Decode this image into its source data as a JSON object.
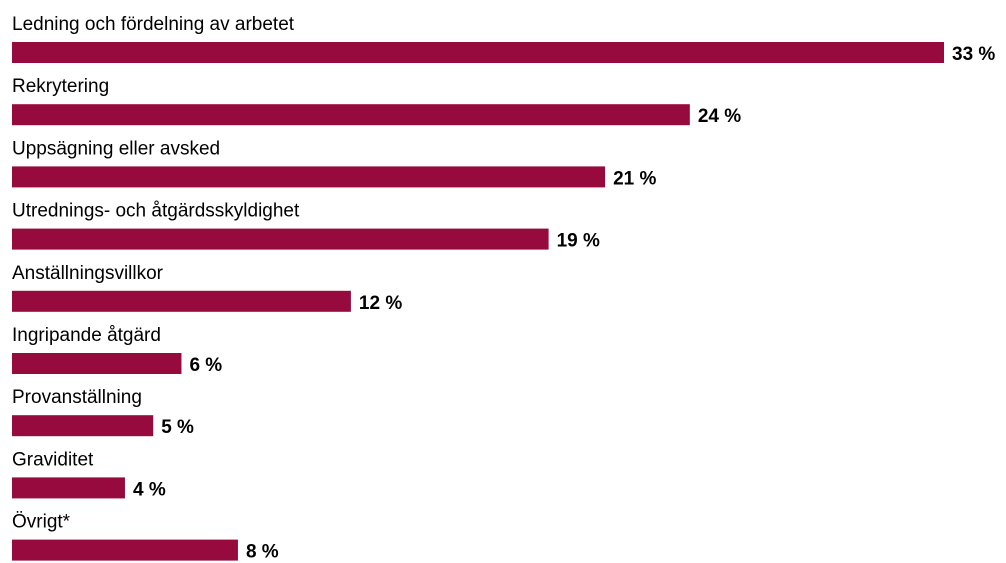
{
  "chart_data": {
    "type": "bar",
    "orientation": "horizontal",
    "categories": [
      "Ledning och fördelning av arbetet",
      "Rekrytering",
      "Uppsägning eller avsked",
      "Utrednings- och åtgärdsskyldighet",
      "Anställningsvillkor",
      "Ingripande åtgärd",
      "Provanställning",
      "Graviditet",
      "Övrigt*"
    ],
    "values": [
      33,
      24,
      21,
      19,
      12,
      6,
      5,
      4,
      8
    ],
    "value_labels": [
      "33 %",
      "24 %",
      "21 %",
      "19 %",
      "12 %",
      "6 %",
      "5 %",
      "4 %",
      "8 %"
    ],
    "unit": "%",
    "bar_color": "#970a3e",
    "grid": false,
    "legend": "none"
  }
}
